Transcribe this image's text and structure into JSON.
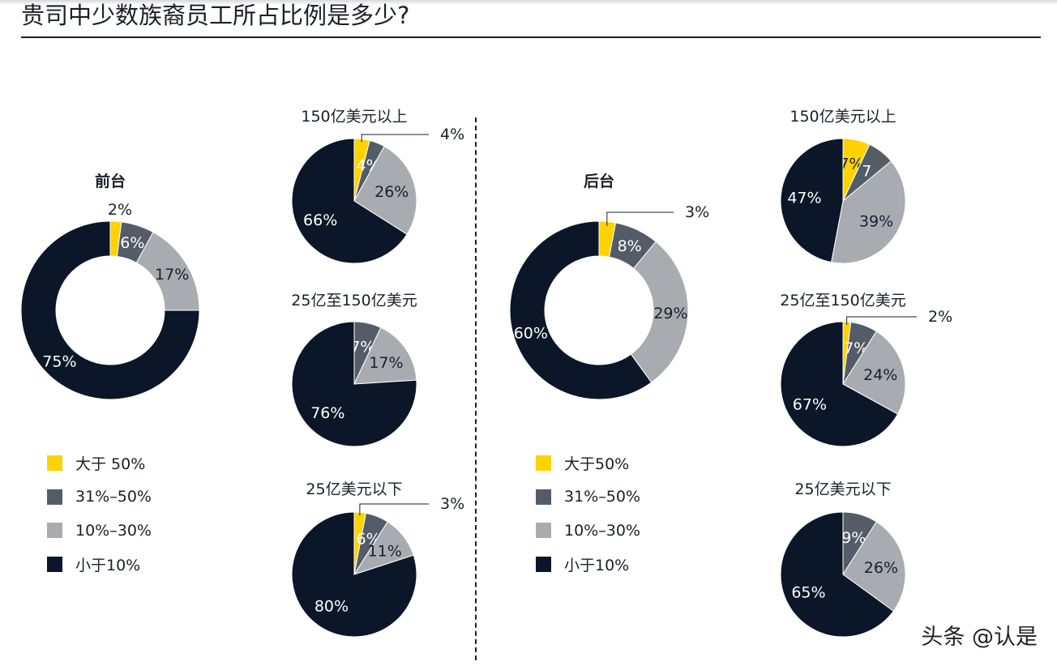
{
  "title": "贵司中少数族裔员工所占比例是多少?",
  "colors": {
    "gt50": "#FFD200",
    "31_50": "#545C67",
    "10_30": "#A8ACB1",
    "lt10": "#0B1628"
  },
  "legend": {
    "left": [
      "大于 50%",
      "31%–50%",
      "10%–30%",
      "小于10%"
    ],
    "right": [
      "大于50%",
      "31%–50%",
      "10%–30%",
      "小于10%"
    ]
  },
  "watermark": "头条 @认是",
  "chart_data": [
    {
      "type": "pie",
      "variant": "donut",
      "title": "前台",
      "values": [
        2,
        6,
        17,
        75
      ],
      "labels": [
        "2%",
        "6%",
        "17%",
        "75%"
      ]
    },
    {
      "type": "pie",
      "title": "150亿美元以上",
      "values": [
        4,
        4,
        26,
        66
      ],
      "labels": [
        "4%",
        "4%",
        "26%",
        "66%"
      ]
    },
    {
      "type": "pie",
      "title": "25亿至150亿美元",
      "values": [
        0,
        7,
        17,
        76
      ],
      "labels": [
        "",
        "7%",
        "17%",
        "76%"
      ]
    },
    {
      "type": "pie",
      "title": "25亿美元以下",
      "values": [
        3,
        6,
        11,
        80
      ],
      "labels": [
        "3%",
        "6%",
        "11%",
        "80%"
      ]
    },
    {
      "type": "pie",
      "variant": "donut",
      "title": "后台",
      "values": [
        3,
        8,
        29,
        60
      ],
      "labels": [
        "3%",
        "8%",
        "29%",
        "60%"
      ]
    },
    {
      "type": "pie",
      "title": "150亿美元以上",
      "values": [
        7,
        7,
        39,
        47
      ],
      "labels": [
        "7%",
        "7",
        "39%",
        "47%"
      ]
    },
    {
      "type": "pie",
      "title": "25亿至150亿美元",
      "values": [
        2,
        7,
        24,
        67
      ],
      "labels": [
        "2%",
        "7%",
        "24%",
        "67%"
      ]
    },
    {
      "type": "pie",
      "title": "25亿美元以下",
      "values": [
        0,
        9,
        26,
        65
      ],
      "labels": [
        "",
        "9%",
        "26%",
        "65%"
      ]
    }
  ]
}
